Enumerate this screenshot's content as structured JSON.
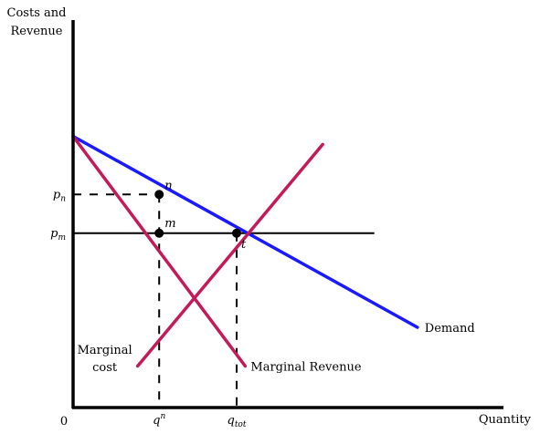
{
  "chart_data": {
    "type": "line",
    "title": "",
    "ylabel": [
      "Costs and",
      "Revenue"
    ],
    "xlabel": "Quantity",
    "origin_label": "0",
    "xlim": [
      0,
      10
    ],
    "ylim": [
      0,
      10
    ],
    "series": [
      {
        "name": "Demand",
        "color": "#1a1aff",
        "label_lines": [
          "Demand"
        ],
        "points": [
          [
            0,
            7.0
          ],
          [
            8.0,
            2.07
          ]
        ]
      },
      {
        "name": "Marginal Revenue",
        "color": "#c41a5a",
        "label_lines": [
          "Marginal Revenue"
        ],
        "points": [
          [
            0,
            7.0
          ],
          [
            4.0,
            1.07
          ]
        ]
      },
      {
        "name": "Marginal cost",
        "color": "#c41a5a",
        "label_lines": [
          "Marginal",
          "cost"
        ],
        "points": [
          [
            1.5,
            1.07
          ],
          [
            5.8,
            6.79
          ]
        ]
      }
    ],
    "price_lines": [
      {
        "name": "p_m",
        "y": 4.5,
        "x_to": 7.0,
        "style": "solid"
      },
      {
        "name": "p_n",
        "y": 5.5,
        "x_to": 2.0,
        "style": "dashed"
      }
    ],
    "quantity_lines": [
      {
        "name": "q^n",
        "x": 2.0,
        "y_to": 5.5
      },
      {
        "name": "q_tot",
        "x": 3.8,
        "y_to": 4.5
      }
    ],
    "points": [
      {
        "label": "n",
        "x": 2.0,
        "y": 5.5
      },
      {
        "label": "m",
        "x": 2.0,
        "y": 4.5
      },
      {
        "label": "t",
        "x": 3.8,
        "y": 4.5
      }
    ],
    "y_ticks": [
      {
        "base": "p",
        "sub": "n",
        "y": 5.5
      },
      {
        "base": "p",
        "sub": "m",
        "y": 4.5
      }
    ],
    "x_ticks": [
      {
        "base": "q",
        "sup": "n",
        "sub": "",
        "x": 2.0
      },
      {
        "base": "q",
        "sup": "",
        "sub": "tot",
        "x": 3.8
      }
    ]
  }
}
